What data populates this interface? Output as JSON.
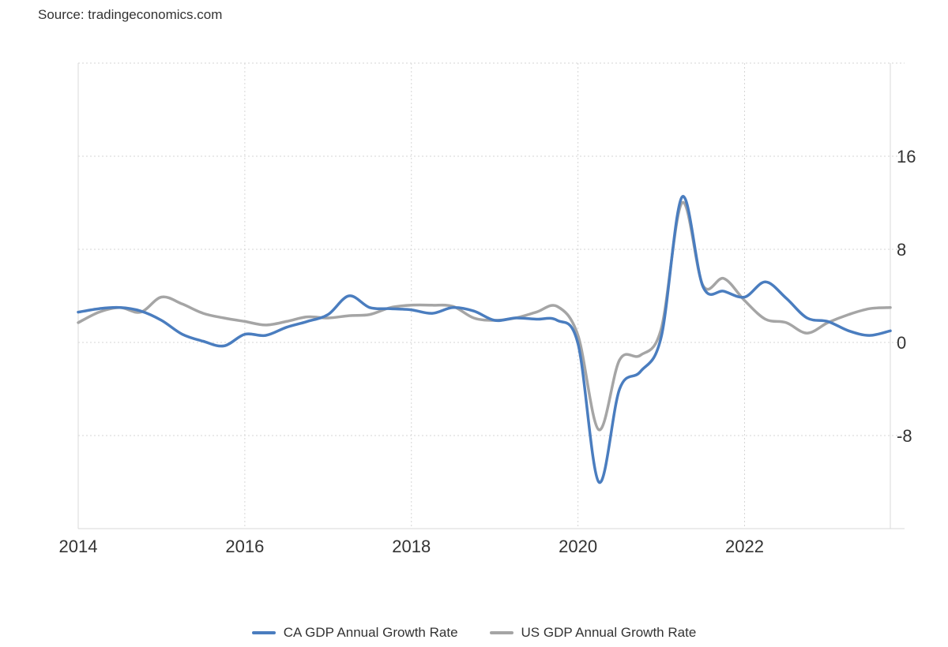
{
  "source": "Source: tradingeconomics.com",
  "colors": {
    "ca": "#4a7dbf",
    "us": "#a5a5a5",
    "grid": "#d6d6d6"
  },
  "chart_data": {
    "type": "line",
    "title": "",
    "xlabel": "",
    "ylabel": "",
    "xlim": [
      2014.0,
      2023.75
    ],
    "ylim": [
      -16,
      24
    ],
    "yticks": [
      -8,
      0,
      8,
      16
    ],
    "xticks": [
      2014,
      2016,
      2018,
      2020,
      2022
    ],
    "grid": true,
    "legend_position": "bottom-center",
    "series": [
      {
        "name": "CA GDP Annual Growth Rate",
        "x": [
          2014.0,
          2014.25,
          2014.5,
          2014.75,
          2015.0,
          2015.25,
          2015.5,
          2015.75,
          2016.0,
          2016.25,
          2016.5,
          2016.75,
          2017.0,
          2017.25,
          2017.5,
          2017.75,
          2018.0,
          2018.25,
          2018.5,
          2018.75,
          2019.0,
          2019.25,
          2019.5,
          2019.75,
          2020.0,
          2020.25,
          2020.5,
          2020.75,
          2021.0,
          2021.25,
          2021.5,
          2021.75,
          2022.0,
          2022.25,
          2022.5,
          2022.75,
          2023.0,
          2023.25,
          2023.5,
          2023.75
        ],
        "values": [
          2.6,
          2.9,
          3.0,
          2.7,
          1.9,
          0.7,
          0.1,
          -0.3,
          0.7,
          0.6,
          1.3,
          1.8,
          2.4,
          4.0,
          3.0,
          2.9,
          2.8,
          2.5,
          3.0,
          2.7,
          1.9,
          2.1,
          2.0,
          1.9,
          -0.1,
          -12.0,
          -4.0,
          -2.5,
          0.5,
          12.5,
          4.8,
          4.4,
          3.9,
          5.2,
          3.8,
          2.1,
          1.8,
          1.0,
          0.6,
          1.0
        ]
      },
      {
        "name": "US GDP Annual Growth Rate",
        "x": [
          2014.0,
          2014.25,
          2014.5,
          2014.75,
          2015.0,
          2015.25,
          2015.5,
          2015.75,
          2016.0,
          2016.25,
          2016.5,
          2016.75,
          2017.0,
          2017.25,
          2017.5,
          2017.75,
          2018.0,
          2018.25,
          2018.5,
          2018.75,
          2019.0,
          2019.25,
          2019.5,
          2019.75,
          2020.0,
          2020.25,
          2020.5,
          2020.75,
          2021.0,
          2021.25,
          2021.5,
          2021.75,
          2022.0,
          2022.25,
          2022.5,
          2022.75,
          2023.0,
          2023.25,
          2023.5,
          2023.75
        ],
        "values": [
          1.7,
          2.6,
          3.0,
          2.6,
          3.9,
          3.3,
          2.5,
          2.1,
          1.8,
          1.5,
          1.8,
          2.2,
          2.1,
          2.3,
          2.4,
          3.0,
          3.2,
          3.2,
          3.1,
          2.1,
          1.9,
          2.1,
          2.6,
          3.1,
          0.6,
          -7.5,
          -1.5,
          -1.1,
          1.2,
          12.0,
          4.9,
          5.5,
          3.6,
          2.0,
          1.7,
          0.8,
          1.7,
          2.4,
          2.9,
          3.0
        ]
      }
    ]
  }
}
